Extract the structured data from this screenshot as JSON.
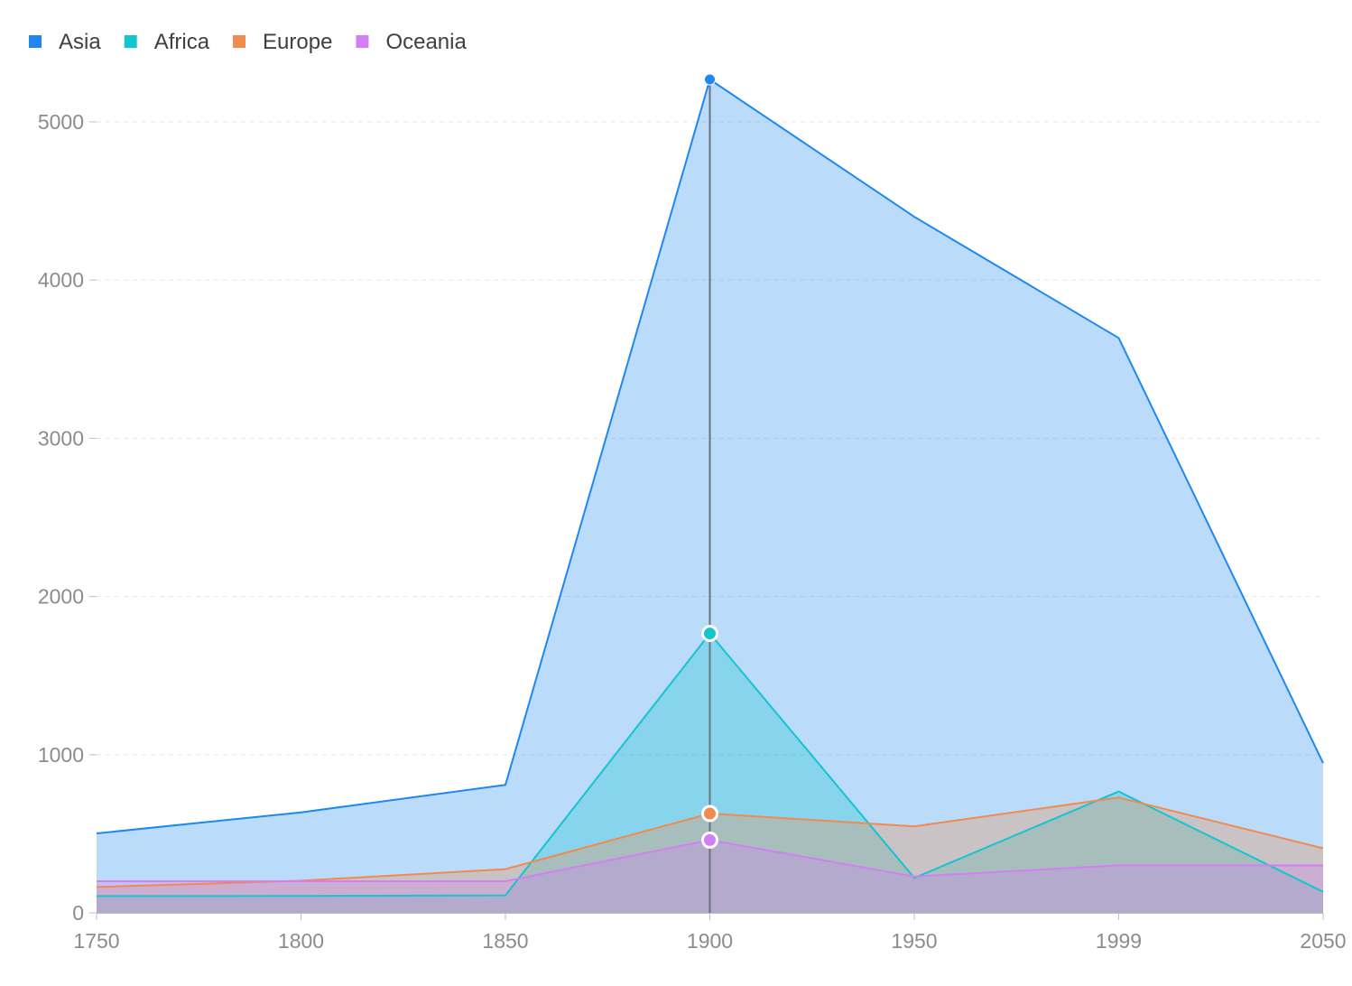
{
  "chart_data": {
    "type": "area",
    "title": "",
    "xlabel": "",
    "ylabel": "",
    "categories": [
      "1750",
      "1800",
      "1850",
      "1900",
      "1950",
      "1999",
      "2050"
    ],
    "series": [
      {
        "name": "Asia",
        "color": "#1e88f0",
        "values": [
          502,
          635,
          809,
          5268,
          4400,
          3634,
          947
        ]
      },
      {
        "name": "Africa",
        "color": "#13c5cf",
        "values": [
          106,
          107,
          111,
          1766,
          221,
          767,
          133
        ]
      },
      {
        "name": "Europe",
        "color": "#f08a4e",
        "values": [
          163,
          203,
          276,
          628,
          547,
          729,
          408
        ]
      },
      {
        "name": "Oceania",
        "color": "#d37ff3",
        "values": [
          200,
          200,
          200,
          460,
          230,
          300,
          300
        ]
      }
    ],
    "ylim": [
      0,
      5268
    ],
    "yticks": [
      0,
      1000,
      2000,
      3000,
      4000,
      5000
    ],
    "grid": "horizontal-dashed",
    "legend_position": "top-left",
    "highlight_category": "1900"
  }
}
